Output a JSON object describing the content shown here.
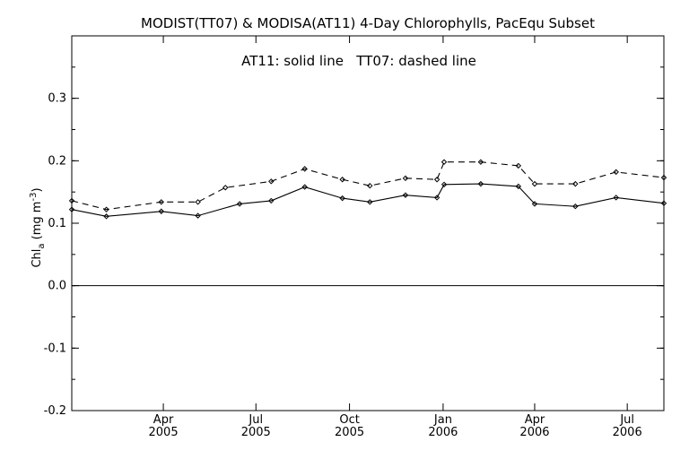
{
  "chart_data": {
    "type": "line",
    "title": "MODIST(TT07) & MODISA(AT11) 4-Day Chlorophylls, PacEqu Subset",
    "annotation": "AT11: solid line   TT07: dashed line",
    "ylabel": {
      "prefix": "Chl",
      "sub": "a",
      "middle": " (mg m",
      "sup": "-3",
      "suffix": ")"
    },
    "ylim": [
      -0.2,
      0.4
    ],
    "yticks": [
      "-0.2",
      "-0.1",
      "0.0",
      "0.1",
      "0.2",
      "0.3"
    ],
    "xlim": [
      "2005-01-01",
      "2006-08-06"
    ],
    "xticks": [
      {
        "date": "2005-04-01",
        "month": "Apr",
        "year": "2005"
      },
      {
        "date": "2005-07-01",
        "month": "Jul",
        "year": "2005"
      },
      {
        "date": "2005-10-01",
        "month": "Oct",
        "year": "2005"
      },
      {
        "date": "2006-01-01",
        "month": "Jan",
        "year": "2006"
      },
      {
        "date": "2006-04-01",
        "month": "Apr",
        "year": "2006"
      },
      {
        "date": "2006-07-01",
        "month": "Jul",
        "year": "2006"
      }
    ],
    "zero_line": true,
    "grid": false,
    "series": [
      {
        "name": "AT11",
        "style": "solid",
        "color": "#000000",
        "points": [
          {
            "x": "2005-01-01",
            "y": 0.122
          },
          {
            "x": "2005-02-04",
            "y": 0.111
          },
          {
            "x": "2005-03-30",
            "y": 0.119
          },
          {
            "x": "2005-05-05",
            "y": 0.112
          },
          {
            "x": "2005-06-15",
            "y": 0.131
          },
          {
            "x": "2005-07-16",
            "y": 0.136
          },
          {
            "x": "2005-08-18",
            "y": 0.158
          },
          {
            "x": "2005-09-24",
            "y": 0.14
          },
          {
            "x": "2005-10-21",
            "y": 0.134
          },
          {
            "x": "2005-11-25",
            "y": 0.145
          },
          {
            "x": "2005-12-26",
            "y": 0.141
          },
          {
            "x": "2006-01-02",
            "y": 0.162
          },
          {
            "x": "2006-02-07",
            "y": 0.163
          },
          {
            "x": "2006-03-16",
            "y": 0.159
          },
          {
            "x": "2006-04-01",
            "y": 0.131
          },
          {
            "x": "2006-05-11",
            "y": 0.127
          },
          {
            "x": "2006-06-20",
            "y": 0.141
          },
          {
            "x": "2006-08-06",
            "y": 0.132
          }
        ]
      },
      {
        "name": "TT07",
        "style": "dashed",
        "color": "#000000",
        "points": [
          {
            "x": "2005-01-01",
            "y": 0.136
          },
          {
            "x": "2005-02-04",
            "y": 0.122
          },
          {
            "x": "2005-03-30",
            "y": 0.134
          },
          {
            "x": "2005-05-05",
            "y": 0.134
          },
          {
            "x": "2005-06-01",
            "y": 0.157
          },
          {
            "x": "2005-07-16",
            "y": 0.167
          },
          {
            "x": "2005-08-18",
            "y": 0.187
          },
          {
            "x": "2005-09-24",
            "y": 0.17
          },
          {
            "x": "2005-10-21",
            "y": 0.16
          },
          {
            "x": "2005-11-25",
            "y": 0.172
          },
          {
            "x": "2005-12-26",
            "y": 0.17
          },
          {
            "x": "2006-01-02",
            "y": 0.198
          },
          {
            "x": "2006-02-07",
            "y": 0.198
          },
          {
            "x": "2006-03-16",
            "y": 0.192
          },
          {
            "x": "2006-04-01",
            "y": 0.163
          },
          {
            "x": "2006-05-11",
            "y": 0.163
          },
          {
            "x": "2006-06-20",
            "y": 0.182
          },
          {
            "x": "2006-08-06",
            "y": 0.173
          }
        ]
      }
    ]
  }
}
